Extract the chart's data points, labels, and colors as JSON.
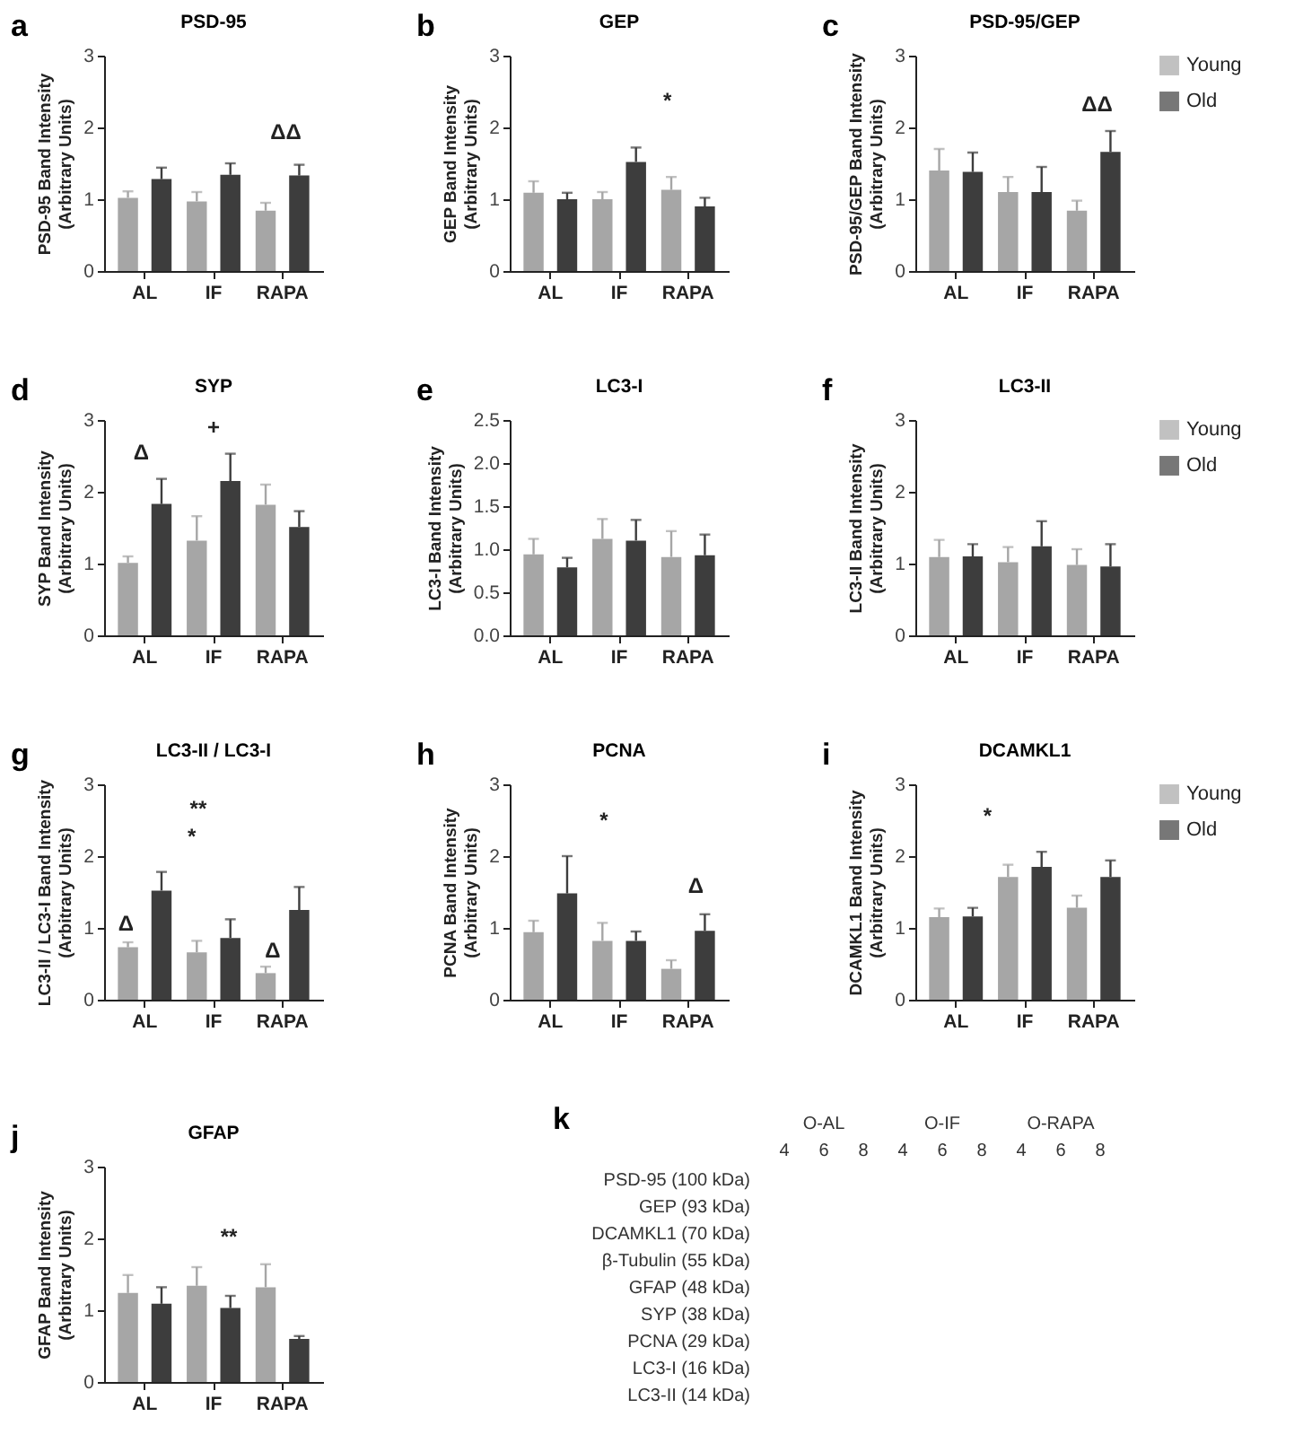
{
  "chart_data": [
    {
      "type": "bar",
      "title": "PSD-95",
      "ylabel": "PSD-95 Band Intensity\n(Arbitrary Units)",
      "categories": [
        "AL",
        "IF",
        "RAPA"
      ],
      "series": [
        {
          "color": "#a6a6a6",
          "values": [
            1.02,
            0.97,
            0.84
          ],
          "errors": [
            [
              1.02,
              1.11
            ],
            [
              0.97,
              1.1
            ],
            [
              0.84,
              0.95
            ]
          ]
        },
        {
          "color": "#3d3d3d",
          "values": [
            1.28,
            1.34,
            1.33
          ],
          "errors": [
            [
              1.28,
              1.44
            ],
            [
              1.34,
              1.5
            ],
            [
              1.33,
              1.48
            ]
          ]
        }
      ],
      "ylim": [
        0,
        3
      ],
      "yticks": [
        0,
        1,
        2,
        3
      ],
      "annotations": [
        "a",
        "ΔΔ"
      ]
    },
    {
      "type": "bar",
      "title": "GEP",
      "ylabel": "GEP Band Intensity\n(Arbitrary Units)",
      "categories": [
        "AL",
        "IF",
        "RAPA"
      ],
      "series": [
        {
          "color": "#a6a6a6",
          "values": [
            1.09,
            1.0,
            1.13
          ],
          "errors": [
            [
              1.09,
              1.25
            ],
            [
              1.0,
              1.1
            ],
            [
              1.13,
              1.31
            ]
          ]
        },
        {
          "color": "#3d3d3d",
          "values": [
            1.0,
            1.52,
            0.9
          ],
          "errors": [
            [
              1.0,
              1.09
            ],
            [
              1.52,
              1.72
            ],
            [
              0.9,
              1.02
            ]
          ]
        }
      ],
      "ylim": [
        0,
        3
      ],
      "yticks": [
        0,
        1,
        2,
        3
      ],
      "annotations": [
        "b",
        "*"
      ]
    },
    {
      "type": "bar",
      "title": "PSD-95/GEP",
      "ylabel": "PSD-95/GEP Band Intensity\n(Arbitrary Units)",
      "categories": [
        "AL",
        "IF",
        "RAPA"
      ],
      "series": [
        {
          "name": "Young",
          "color": "#a6a6a6",
          "values": [
            1.4,
            1.1,
            0.84
          ],
          "errors": [
            [
              1.4,
              1.7
            ],
            [
              1.1,
              1.31
            ],
            [
              0.84,
              0.98
            ]
          ]
        },
        {
          "name": "Old",
          "color": "#3d3d3d",
          "values": [
            1.38,
            1.1,
            1.66
          ],
          "errors": [
            [
              1.38,
              1.65
            ],
            [
              1.1,
              1.45
            ],
            [
              1.66,
              1.95
            ]
          ]
        }
      ],
      "ylim": [
        0,
        3
      ],
      "yticks": [
        0,
        1,
        2,
        3
      ],
      "legend": "right",
      "annotations": [
        "c",
        "ΔΔ"
      ]
    },
    {
      "type": "bar",
      "title": "SYP",
      "ylabel": "SYP Band Intensity\n(Arbitrary Units)",
      "categories": [
        "AL",
        "IF",
        "RAPA"
      ],
      "series": [
        {
          "color": "#a6a6a6",
          "values": [
            1.01,
            1.32,
            1.82
          ],
          "errors": [
            [
              1.01,
              1.1
            ],
            [
              1.32,
              1.66
            ],
            [
              1.82,
              2.1
            ]
          ]
        },
        {
          "color": "#3d3d3d",
          "values": [
            1.83,
            2.15,
            1.51
          ],
          "errors": [
            [
              1.83,
              2.18
            ],
            [
              2.15,
              2.53
            ],
            [
              1.51,
              1.73
            ]
          ]
        }
      ],
      "ylim": [
        0,
        3
      ],
      "yticks": [
        0,
        1,
        2,
        3
      ],
      "annotations": [
        "d",
        "+",
        "Δ"
      ]
    },
    {
      "type": "bar",
      "title": "LC3-I",
      "ylabel": "LC3-I Band Intensity\n(Arbitrary Units)",
      "categories": [
        "AL",
        "IF",
        "RAPA"
      ],
      "series": [
        {
          "color": "#a6a6a6",
          "values": [
            0.94,
            1.12,
            0.91
          ],
          "errors": [
            [
              0.94,
              1.12
            ],
            [
              1.12,
              1.35
            ],
            [
              0.91,
              1.21
            ]
          ]
        },
        {
          "color": "#3d3d3d",
          "values": [
            0.79,
            1.1,
            0.93
          ],
          "errors": [
            [
              0.79,
              0.9
            ],
            [
              1.1,
              1.34
            ],
            [
              0.93,
              1.17
            ]
          ]
        }
      ],
      "ylim": [
        0,
        2.5
      ],
      "yticks": [
        {
          "value": 0,
          "label": "0.0"
        },
        0.5,
        {
          "value": 1,
          "label": "1.0"
        },
        1.5,
        {
          "value": 2,
          "label": "2.0"
        },
        2.5
      ],
      "annotations": [
        "e"
      ]
    },
    {
      "type": "bar",
      "title": "LC3-II",
      "ylabel": "LC3-II Band Intensity\n(Arbitrary Units)",
      "categories": [
        "AL",
        "IF",
        "RAPA"
      ],
      "series": [
        {
          "name": "Young",
          "color": "#a6a6a6",
          "values": [
            1.09,
            1.02,
            0.98
          ],
          "errors": [
            [
              1.09,
              1.33
            ],
            [
              1.02,
              1.23
            ],
            [
              0.98,
              1.2
            ]
          ]
        },
        {
          "name": "Old",
          "color": "#3d3d3d",
          "values": [
            1.1,
            1.24,
            0.96
          ],
          "errors": [
            [
              1.1,
              1.27
            ],
            [
              1.24,
              1.59
            ],
            [
              0.96,
              1.27
            ]
          ]
        }
      ],
      "ylim": [
        0,
        3
      ],
      "yticks": [
        0,
        1,
        2,
        3
      ],
      "legend": "right",
      "annotations": [
        "f"
      ]
    },
    {
      "type": "bar",
      "title": "LC3-II / LC3-I",
      "ylabel": "LC3-II / LC3-I Band Intensity\n(Arbitrary Units)",
      "categories": [
        "AL",
        "IF",
        "RAPA"
      ],
      "series": [
        {
          "color": "#a6a6a6",
          "values": [
            0.73,
            0.66,
            0.37
          ],
          "errors": [
            [
              0.73,
              0.8
            ],
            [
              0.66,
              0.82
            ],
            [
              0.37,
              0.46
            ]
          ]
        },
        {
          "color": "#3d3d3d",
          "values": [
            1.52,
            0.86,
            1.25
          ],
          "errors": [
            [
              1.52,
              1.78
            ],
            [
              0.86,
              1.12
            ],
            [
              1.25,
              1.57
            ]
          ]
        }
      ],
      "ylim": [
        0,
        3
      ],
      "yticks": [
        0,
        1,
        2,
        3
      ],
      "annotations": [
        "g",
        "Δ",
        "**",
        "*",
        "Δ"
      ]
    },
    {
      "type": "bar",
      "title": "PCNA",
      "ylabel": "PCNA Band Intensity\n(Arbitrary Units)",
      "categories": [
        "AL",
        "IF",
        "RAPA"
      ],
      "series": [
        {
          "color": "#a6a6a6",
          "values": [
            0.94,
            0.82,
            0.43
          ],
          "errors": [
            [
              0.94,
              1.1
            ],
            [
              0.82,
              1.07
            ],
            [
              0.43,
              0.55
            ]
          ]
        },
        {
          "color": "#3d3d3d",
          "values": [
            1.48,
            0.82,
            0.96
          ],
          "errors": [
            [
              1.48,
              2.0
            ],
            [
              0.82,
              0.95
            ],
            [
              0.96,
              1.19
            ]
          ]
        }
      ],
      "ylim": [
        0,
        3
      ],
      "yticks": [
        0,
        1,
        2,
        3
      ],
      "annotations": [
        "h",
        "*",
        "Δ"
      ]
    },
    {
      "type": "bar",
      "title": "DCAMKL1",
      "ylabel": "DCAMKL1 Band Intensity\n(Arbitrary Units)",
      "categories": [
        "AL",
        "IF",
        "RAPA"
      ],
      "series": [
        {
          "name": "Young",
          "color": "#a6a6a6",
          "values": [
            1.15,
            1.71,
            1.28
          ],
          "errors": [
            [
              1.15,
              1.27
            ],
            [
              1.71,
              1.88
            ],
            [
              1.28,
              1.45
            ]
          ]
        },
        {
          "name": "Old",
          "color": "#3d3d3d",
          "values": [
            1.16,
            1.85,
            1.71
          ],
          "errors": [
            [
              1.16,
              1.28
            ],
            [
              1.85,
              2.06
            ],
            [
              1.71,
              1.94
            ]
          ]
        }
      ],
      "ylim": [
        0,
        3
      ],
      "yticks": [
        0,
        1,
        2,
        3
      ],
      "legend": "right",
      "annotations": [
        "i",
        "*"
      ]
    },
    {
      "type": "bar",
      "title": "GFAP",
      "ylabel": "GFAP Band Intensity\n(Arbitrary Units)",
      "categories": [
        "AL",
        "IF",
        "RAPA"
      ],
      "series": [
        {
          "color": "#a6a6a6",
          "values": [
            1.24,
            1.34,
            1.32
          ],
          "errors": [
            [
              1.24,
              1.49
            ],
            [
              1.34,
              1.6
            ],
            [
              1.32,
              1.64
            ]
          ]
        },
        {
          "color": "#3d3d3d",
          "values": [
            1.09,
            1.03,
            0.6
          ],
          "errors": [
            [
              1.09,
              1.32
            ],
            [
              1.03,
              1.2
            ],
            [
              0.6,
              0.64
            ]
          ]
        }
      ],
      "ylim": [
        0,
        3
      ],
      "yticks": [
        0,
        1,
        2,
        3
      ],
      "annotations": [
        "j",
        "**"
      ]
    },
    {
      "type": "other",
      "annotations": [
        "k",
        "O-AL",
        "O-IF",
        "O-RAPA"
      ],
      "categories": [
        "4",
        "6",
        "8",
        "4",
        "6",
        "8",
        "4",
        "6",
        "8"
      ],
      "y_categories": [
        "PSD-95 (100 kDa)",
        "GEP (93 kDa)",
        "DCAMKL1 (70 kDa)",
        "β-Tubulin (55 kDa)",
        "GFAP (48 kDa)",
        "SYP (38 kDa)",
        "PCNA (29 kDa)",
        "LC3-I (16 kDa)",
        "LC3-II (14 kDa)"
      ]
    }
  ]
}
